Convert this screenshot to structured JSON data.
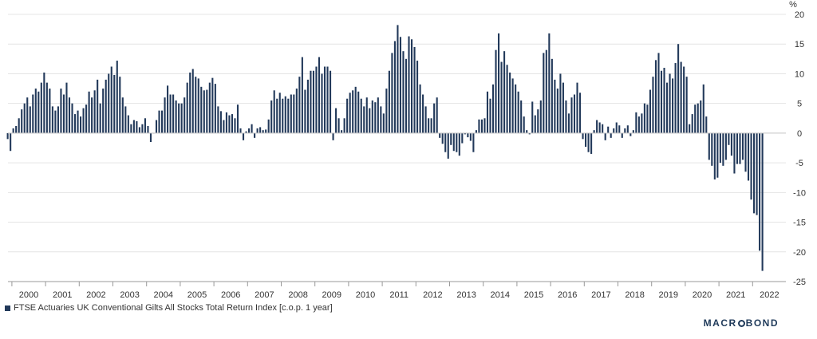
{
  "chart_data": {
    "type": "bar",
    "title": "",
    "xlabel": "",
    "ylabel": "%",
    "ylim": [
      -25,
      20
    ],
    "yticks": [
      20,
      15,
      10,
      5,
      0,
      -5,
      -10,
      -15,
      -20,
      -25
    ],
    "x_tick_labels": [
      "2000",
      "2001",
      "2002",
      "2003",
      "2004",
      "2005",
      "2006",
      "2007",
      "2008",
      "2009",
      "2010",
      "2011",
      "2012",
      "2013",
      "2014",
      "2015",
      "2016",
      "2017",
      "2018",
      "2019",
      "2020",
      "2021",
      "2022"
    ],
    "grid": true,
    "legend_position": "bottom-left",
    "color": "#22395a",
    "series": [
      {
        "name": "FTSE Actuaries UK Conventional Gilts All Stocks Total Return Index [c.o.p. 1 year]",
        "start": "1999-11",
        "frequency": "monthly",
        "values": [
          -1,
          -3,
          0.8,
          1.2,
          2.5,
          4,
          5,
          6,
          4.5,
          6.5,
          7.5,
          7,
          8.5,
          10.2,
          8.5,
          7.5,
          4.5,
          3.8,
          4.5,
          7.5,
          6.5,
          8.5,
          6,
          5,
          3.2,
          3.8,
          2.8,
          4.2,
          4.8,
          7,
          6,
          7.2,
          9,
          5,
          7.5,
          9,
          10,
          11.2,
          9.8,
          12.2,
          9.5,
          6,
          4.5,
          3,
          1.5,
          2.2,
          2,
          1,
          1.5,
          2.5,
          1.2,
          -1.5,
          0,
          2.2,
          3.8,
          3.8,
          6,
          8,
          6.5,
          6.5,
          5.5,
          5,
          5,
          6,
          8.5,
          10.2,
          10.8,
          9.5,
          9.2,
          7.8,
          7.2,
          7.3,
          8.5,
          9.3,
          8.3,
          4.5,
          3.7,
          2.2,
          3.5,
          3,
          3.2,
          2.5,
          4.8,
          0.8,
          -1.2,
          0.3,
          0.8,
          1.5,
          -0.8,
          0.8,
          1,
          0.5,
          0.6,
          2.3,
          5.5,
          7.2,
          5.8,
          6.8,
          5.8,
          6.2,
          5.8,
          6.5,
          6.5,
          7.5,
          9.5,
          12.8,
          7.3,
          9,
          10.5,
          10.5,
          11.2,
          12.8,
          10,
          11.2,
          11.2,
          10.5,
          -1.2,
          4.2,
          2.5,
          0.5,
          2.5,
          5.8,
          6.8,
          7.2,
          7.8,
          7,
          5.8,
          4.5,
          6,
          4.2,
          5.5,
          5.2,
          6,
          4.5,
          3.3,
          7.5,
          10.5,
          13.5,
          15.5,
          18.2,
          16.2,
          13.8,
          12.5,
          16.3,
          15.8,
          14.5,
          12.2,
          8.2,
          6.5,
          4.5,
          2.5,
          2.5,
          5,
          6,
          -0.8,
          -1.8,
          -3.2,
          -4.3,
          -2,
          -3,
          -3.2,
          -3.8,
          -1.7,
          -0.2,
          -0.7,
          -1.3,
          -3.2,
          0.5,
          2.3,
          2.3,
          2.5,
          7,
          5.8,
          8.2,
          14,
          16.8,
          12,
          13.8,
          11.5,
          10.2,
          9.2,
          8.2,
          7,
          5.5,
          2.8,
          0.5,
          -0.2,
          5.3,
          3,
          4,
          5.5,
          13.5,
          14,
          16.8,
          12.5,
          9,
          7.5,
          10,
          8.5,
          5.5,
          3.3,
          6,
          6.5,
          8.5,
          6.8,
          -1,
          -2.3,
          -3.2,
          -3.5,
          0.5,
          2.2,
          1.8,
          1.5,
          -1.2,
          1.1,
          -0.8,
          0.8,
          1.8,
          1.3,
          -0.8,
          0.8,
          1.3,
          -0.5,
          0.5,
          3.5,
          2.8,
          3.3,
          5,
          4.8,
          7.3,
          9.5,
          12.3,
          13.5,
          10.5,
          11,
          8.5,
          10,
          9.2,
          11.8,
          15,
          12,
          11.2,
          9.5,
          1.5,
          3.2,
          4.8,
          5,
          5.5,
          8.2,
          2.8,
          -4.5,
          -5.5,
          -7.8,
          -7.5,
          -5,
          -5.5,
          -4.5,
          -2,
          -3.8,
          -6.8,
          -5.2,
          -5.2,
          -4.5,
          -6.5,
          -8,
          -11.2,
          -13.5,
          -13.8,
          -19.8,
          -23.2
        ]
      }
    ]
  },
  "legend": {
    "label": "FTSE Actuaries UK Conventional Gilts All Stocks Total Return Index [c.o.p. 1 year]",
    "color": "#22395a"
  },
  "brand": {
    "prefix": "MACR",
    "suffix": "BOND"
  }
}
